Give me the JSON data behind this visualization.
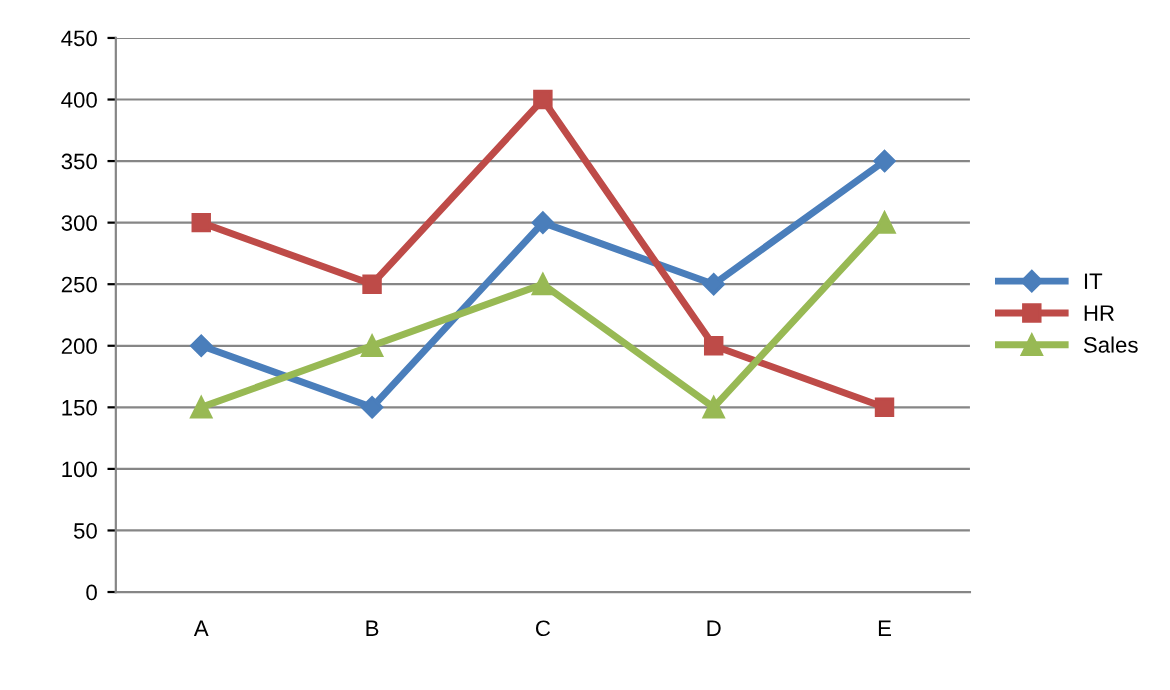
{
  "chart_data": {
    "type": "line",
    "categories": [
      "A",
      "B",
      "C",
      "D",
      "E"
    ],
    "series": [
      {
        "name": "IT",
        "color": "#4a7ebb",
        "marker": "diamond",
        "values": [
          200,
          150,
          300,
          250,
          350
        ]
      },
      {
        "name": "HR",
        "color": "#be4b48",
        "marker": "square",
        "values": [
          300,
          250,
          400,
          200,
          150
        ]
      },
      {
        "name": "Sales",
        "color": "#98b954",
        "marker": "triangle",
        "values": [
          150,
          200,
          250,
          150,
          300
        ]
      }
    ],
    "ylim": [
      0,
      450
    ],
    "yticks": [
      0,
      50,
      100,
      150,
      200,
      250,
      300,
      350,
      400,
      450
    ],
    "grid": "y",
    "legend": "right",
    "line_style": "solid"
  }
}
